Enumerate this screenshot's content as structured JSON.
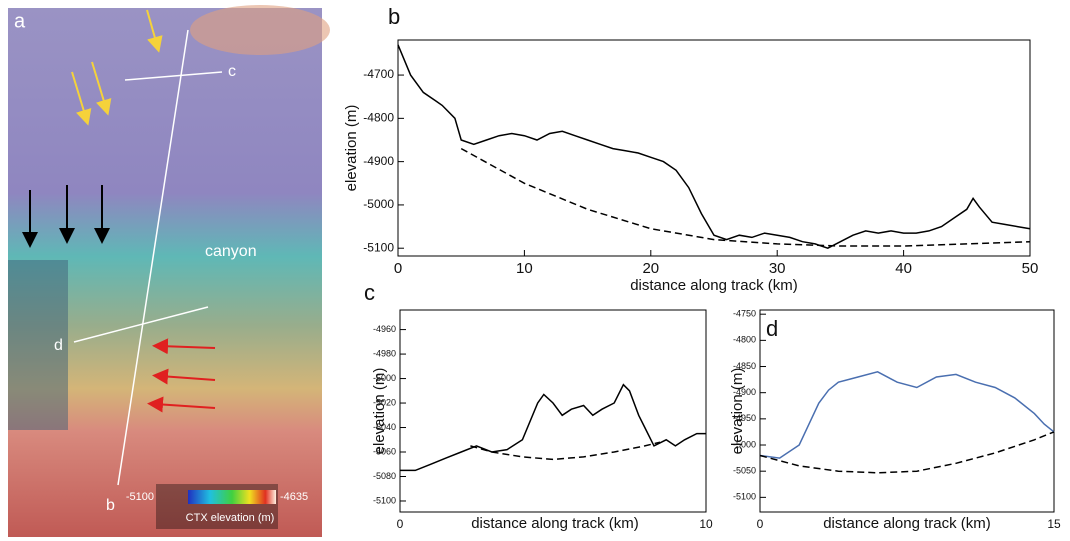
{
  "map": {
    "panel_label": "a",
    "track_labels": [
      "c",
      "d",
      "b"
    ],
    "feature_label": "canyon",
    "colorbar": {
      "min": -5100,
      "max": -4635,
      "title": "CTX elevation (m)"
    }
  },
  "chart_data": [
    {
      "type": "line",
      "panel_label": "b",
      "xlabel": "distance along track (km)",
      "ylabel": "elevation (m)",
      "xlim": [
        0,
        50
      ],
      "xticks": [
        0,
        10,
        20,
        30,
        40,
        50
      ],
      "ylim": [
        -5118,
        -4619
      ],
      "yticks": [
        -4700,
        -4800,
        -4900,
        -5000,
        -5100
      ],
      "series": [
        {
          "color": "#000000",
          "line_style": "solid",
          "x": [
            0,
            1,
            2,
            3,
            3.5,
            4.5,
            5,
            6,
            7,
            8,
            9,
            10,
            11,
            12,
            13,
            14,
            15,
            16,
            17,
            18,
            19,
            20,
            21,
            22,
            23,
            24,
            25,
            26,
            27,
            28,
            29,
            30,
            31,
            32,
            33,
            34,
            35,
            36,
            37,
            38,
            39,
            40,
            41,
            42,
            43,
            44,
            45,
            45.5,
            46,
            47,
            48,
            49,
            50
          ],
          "values": [
            -4630,
            -4700,
            -4740,
            -4760,
            -4770,
            -4800,
            -4850,
            -4860,
            -4850,
            -4840,
            -4835,
            -4840,
            -4850,
            -4835,
            -4830,
            -4840,
            -4850,
            -4860,
            -4870,
            -4875,
            -4880,
            -4890,
            -4900,
            -4920,
            -4960,
            -5020,
            -5070,
            -5080,
            -5070,
            -5075,
            -5065,
            -5070,
            -5075,
            -5085,
            -5090,
            -5100,
            -5085,
            -5070,
            -5060,
            -5065,
            -5060,
            -5065,
            -5065,
            -5060,
            -5050,
            -5030,
            -5010,
            -4985,
            -5005,
            -5040,
            -5045,
            -5050,
            -5055
          ]
        },
        {
          "color": "#000000",
          "line_style": "dashed",
          "x": [
            5,
            10,
            15,
            20,
            25,
            30,
            35,
            40,
            45,
            50
          ],
          "values": [
            -4870,
            -4950,
            -5010,
            -5055,
            -5080,
            -5090,
            -5095,
            -5095,
            -5090,
            -5085
          ]
        }
      ]
    },
    {
      "type": "line",
      "panel_label": "c",
      "xlabel": "distance along track (km)",
      "ylabel": "elevation (m)",
      "xlim": [
        0,
        10
      ],
      "xticks": [
        0,
        10
      ],
      "ylim": [
        -5109,
        -4944
      ],
      "yticks": [
        -4960,
        -4980,
        -5000,
        -5020,
        -5040,
        -5060,
        -5080,
        -5100
      ],
      "series": [
        {
          "color": "#000000",
          "line_style": "solid",
          "x": [
            0,
            0.5,
            1,
            1.5,
            2,
            2.5,
            3,
            3.5,
            4,
            4.5,
            4.7,
            5,
            5.3,
            5.6,
            6,
            6.3,
            6.6,
            7,
            7.3,
            7.5,
            7.8,
            8,
            8.3,
            8.7,
            9,
            9.3,
            9.7,
            10
          ],
          "values": [
            -5075,
            -5075,
            -5070,
            -5065,
            -5060,
            -5055,
            -5060,
            -5058,
            -5050,
            -5020,
            -5013,
            -5020,
            -5030,
            -5025,
            -5022,
            -5030,
            -5025,
            -5020,
            -5005,
            -5010,
            -5030,
            -5040,
            -5055,
            -5050,
            -5055,
            -5050,
            -5045,
            -5045
          ]
        },
        {
          "color": "#000000",
          "line_style": "dashed",
          "x": [
            2.3,
            3,
            4,
            5,
            6,
            7,
            8,
            8.5
          ],
          "values": [
            -5055,
            -5060,
            -5064,
            -5066,
            -5064,
            -5060,
            -5055,
            -5052
          ]
        }
      ]
    },
    {
      "type": "line",
      "panel_label": "d",
      "xlabel": "distance along track (km)",
      "ylabel": "elevation (m)",
      "xlim": [
        0,
        15
      ],
      "xticks": [
        0,
        15
      ],
      "ylim": [
        -5128,
        -4742
      ],
      "yticks": [
        -4750,
        -4800,
        -4850,
        -4900,
        -4950,
        -5000,
        -5050,
        -5100
      ],
      "series": [
        {
          "color": "#4a6fb0",
          "line_style": "solid",
          "x": [
            0,
            1,
            2,
            2.5,
            3,
            3.5,
            4,
            5,
            6,
            7,
            8,
            9,
            10,
            11,
            12,
            13,
            14,
            14.5,
            15
          ],
          "values": [
            -5020,
            -5025,
            -5000,
            -4960,
            -4920,
            -4895,
            -4880,
            -4870,
            -4860,
            -4880,
            -4890,
            -4870,
            -4865,
            -4880,
            -4890,
            -4910,
            -4940,
            -4960,
            -4975
          ]
        },
        {
          "color": "#000000",
          "line_style": "dashed",
          "x": [
            0,
            2,
            4,
            6,
            8,
            10,
            12,
            14,
            15
          ],
          "values": [
            -5020,
            -5040,
            -5050,
            -5053,
            -5050,
            -5035,
            -5015,
            -4990,
            -4975
          ]
        }
      ]
    }
  ]
}
